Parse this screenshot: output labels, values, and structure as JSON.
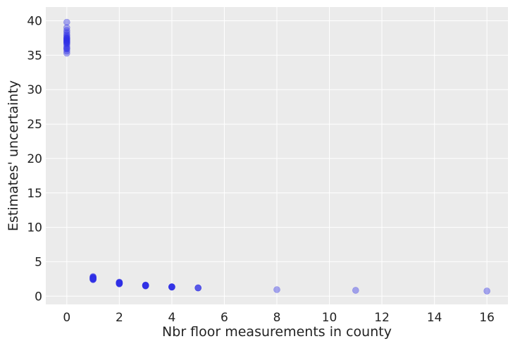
{
  "chart_data": {
    "type": "scatter",
    "title": "",
    "xlabel": "Nbr floor measurements in county",
    "ylabel": "Estimates' uncertainty",
    "xlim": [
      -0.8,
      16.8
    ],
    "ylim": [
      -1.2,
      42
    ],
    "xticks": [
      0,
      2,
      4,
      6,
      8,
      10,
      12,
      14,
      16
    ],
    "yticks": [
      0,
      5,
      10,
      15,
      20,
      25,
      30,
      35,
      40
    ],
    "grid": true,
    "legend": "none",
    "colors": {
      "background": "#ebebeb",
      "grid": "#ffffff",
      "point": "#2f2fe6"
    },
    "point_alpha": 0.4,
    "series": [
      {
        "x": [
          0,
          0,
          0,
          0,
          0,
          0,
          0,
          0,
          0,
          0,
          0,
          0,
          0,
          0,
          0,
          0,
          0,
          0,
          0,
          0,
          0,
          0,
          1,
          1,
          1,
          1,
          1,
          1,
          1,
          1,
          1,
          1,
          1,
          1,
          1,
          1,
          2,
          2,
          2,
          2,
          2,
          2,
          2,
          2,
          2,
          2,
          2,
          2,
          3,
          3,
          3,
          3,
          3,
          3,
          3,
          3,
          3,
          4,
          4,
          4,
          4,
          4,
          4,
          4,
          5,
          5,
          5,
          8,
          11,
          16
        ],
        "y": [
          39.8,
          39.0,
          38.6,
          38.3,
          38.0,
          37.8,
          37.6,
          37.5,
          37.4,
          37.3,
          37.2,
          37.1,
          37.0,
          36.9,
          36.8,
          36.7,
          36.5,
          36.2,
          36.0,
          35.9,
          35.6,
          35.3,
          2.85,
          2.8,
          2.75,
          2.7,
          2.68,
          2.65,
          2.6,
          2.58,
          2.55,
          2.5,
          2.48,
          2.45,
          2.43,
          2.4,
          2.05,
          2.0,
          1.98,
          1.95,
          1.93,
          1.9,
          1.88,
          1.86,
          1.85,
          1.83,
          1.8,
          1.78,
          1.62,
          1.6,
          1.58,
          1.56,
          1.55,
          1.53,
          1.52,
          1.5,
          1.48,
          1.38,
          1.36,
          1.35,
          1.34,
          1.33,
          1.32,
          1.3,
          1.22,
          1.2,
          1.18,
          0.95,
          0.85,
          0.75
        ]
      }
    ]
  }
}
